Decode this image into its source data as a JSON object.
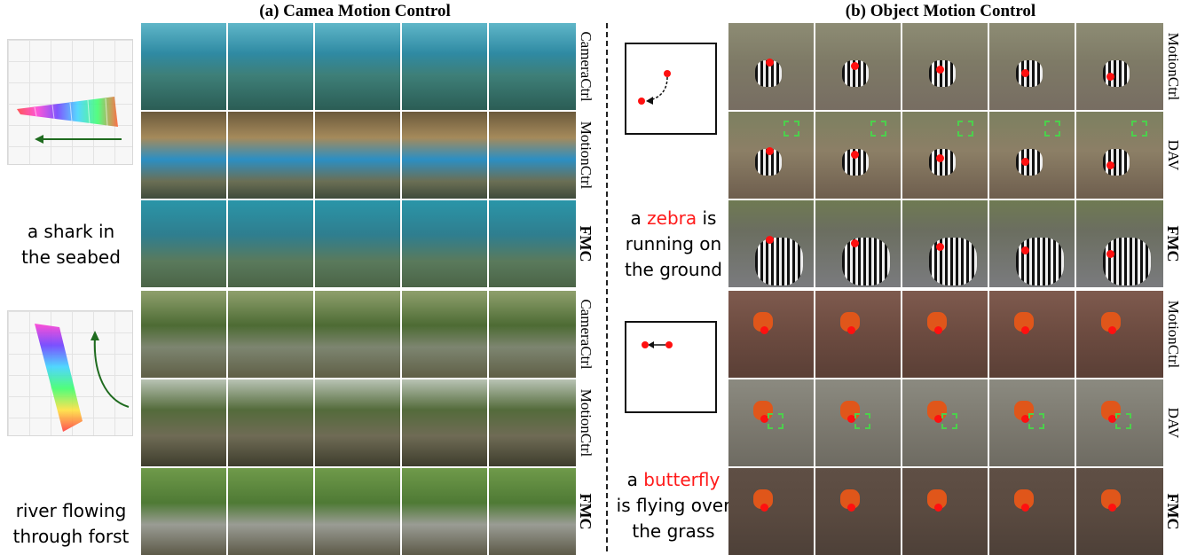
{
  "titles": {
    "camera": "(a) Camea Motion Control",
    "object": "(b) Object Motion Control"
  },
  "camera_panel": {
    "examples": [
      {
        "prompt_lines": [
          "a shark in",
          "the seabed"
        ],
        "trajectory": "camera-pan-left-icon",
        "rows": [
          {
            "method": "CameraCtrl",
            "bold": false,
            "scene": "sea1"
          },
          {
            "method": "MotionCtrl",
            "bold": false,
            "scene": "sea2"
          },
          {
            "method": "FMC",
            "bold": true,
            "scene": "sea3"
          }
        ]
      },
      {
        "prompt_lines": [
          "river flowing",
          "through forst"
        ],
        "trajectory": "camera-arc-up-icon",
        "rows": [
          {
            "method": "CameraCtrl",
            "bold": false,
            "scene": "riv1"
          },
          {
            "method": "MotionCtrl",
            "bold": false,
            "scene": "riv2"
          },
          {
            "method": "FMC",
            "bold": true,
            "scene": "riv3"
          }
        ]
      }
    ]
  },
  "object_panel": {
    "examples": [
      {
        "prompt": {
          "pre": "a ",
          "highlight": "zebra",
          "post_lines": [
            " is",
            "running on",
            "the ground"
          ]
        },
        "trajectory": "curved-arrow-down-left-icon",
        "rows": [
          {
            "method": "MotionCtrl",
            "bold": false,
            "scene": "zeb1"
          },
          {
            "method": "DAV",
            "bold": false,
            "scene": "zeb2"
          },
          {
            "method": "FMC",
            "bold": true,
            "scene": "zeb3"
          }
        ]
      },
      {
        "prompt": {
          "pre": "a ",
          "highlight": "butterfly",
          "post_lines": [
            "",
            "is flying over",
            "the grass"
          ]
        },
        "trajectory": "straight-arrow-left-icon",
        "rows": [
          {
            "method": "MotionCtrl",
            "bold": false,
            "scene": "but1"
          },
          {
            "method": "DAV",
            "bold": false,
            "scene": "but2"
          },
          {
            "method": "FMC",
            "bold": true,
            "scene": "but3"
          }
        ]
      }
    ]
  },
  "frames_per_row": 5,
  "colors": {
    "highlight": "#ff1a1a",
    "trajectory_line": "#1f6b1f",
    "marker": "#ff1010",
    "box": "#4cd04c"
  }
}
